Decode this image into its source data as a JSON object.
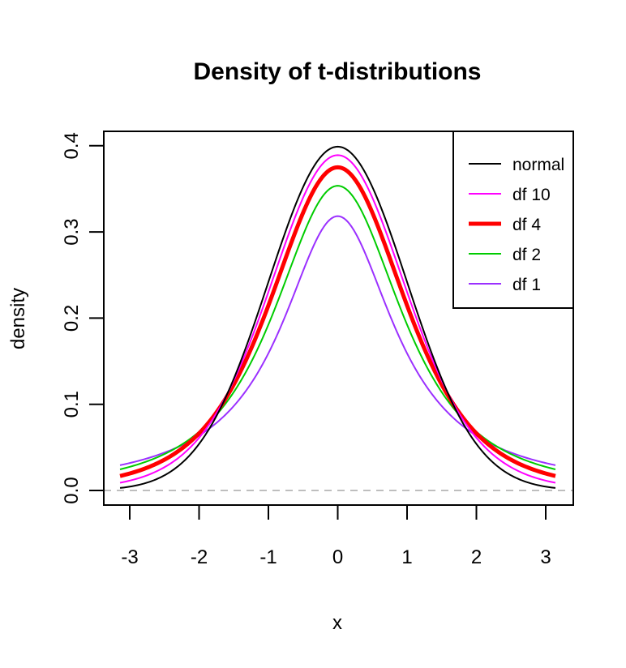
{
  "chart_data": {
    "type": "line",
    "title": "Density of t-distributions",
    "xlabel": "x",
    "ylabel": "density",
    "xlim": [
      -3.14,
      3.14
    ],
    "ylim": [
      0,
      0.4
    ],
    "xticks": [
      "-3",
      "-2",
      "-1",
      "0",
      "1",
      "2",
      "3"
    ],
    "yticks": [
      "0.0",
      "0.1",
      "0.2",
      "0.3",
      "0.4"
    ],
    "grid": false,
    "reference_line": {
      "y": 0,
      "color": "#bebebe",
      "style": "dashed"
    },
    "legend_position": "top-right",
    "series": [
      {
        "name": "normal",
        "color": "#000000",
        "width": 2,
        "x": [
          -3.14,
          -2.5,
          -2,
          -1.5,
          -1,
          -0.5,
          0,
          0.5,
          1,
          1.5,
          2,
          2.5,
          3.14
        ],
        "y": [
          0.003,
          0.018,
          0.054,
          0.13,
          0.242,
          0.352,
          0.399,
          0.352,
          0.242,
          0.13,
          0.054,
          0.018,
          0.003
        ]
      },
      {
        "name": "df 10",
        "color": "#ff00ff",
        "width": 2,
        "x": [
          -3.14,
          -2.5,
          -2,
          -1.5,
          -1,
          -0.5,
          0,
          0.5,
          1,
          1.5,
          2,
          2.5,
          3.14
        ],
        "y": [
          0.008,
          0.027,
          0.061,
          0.127,
          0.23,
          0.341,
          0.389,
          0.341,
          0.23,
          0.127,
          0.061,
          0.027,
          0.008
        ]
      },
      {
        "name": "df 4",
        "color": "#ff0000",
        "width": 5,
        "x": [
          -3.14,
          -2.5,
          -2,
          -1.5,
          -1,
          -0.5,
          0,
          0.5,
          1,
          1.5,
          2,
          2.5,
          3.14
        ],
        "y": [
          0.016,
          0.035,
          0.066,
          0.125,
          0.215,
          0.322,
          0.375,
          0.322,
          0.215,
          0.125,
          0.066,
          0.035,
          0.016
        ]
      },
      {
        "name": "df 2",
        "color": "#00cc00",
        "width": 2,
        "x": [
          -3.14,
          -2.5,
          -2,
          -1.5,
          -1,
          -0.5,
          0,
          0.5,
          1,
          1.5,
          2,
          2.5,
          3.14
        ],
        "y": [
          0.023,
          0.041,
          0.068,
          0.115,
          0.192,
          0.298,
          0.354,
          0.298,
          0.192,
          0.115,
          0.068,
          0.041,
          0.023
        ]
      },
      {
        "name": "df 1",
        "color": "#9b30ff",
        "width": 2,
        "x": [
          -3.14,
          -2.5,
          -2,
          -1.5,
          -1,
          -0.5,
          0,
          0.5,
          1,
          1.5,
          2,
          2.5,
          3.14
        ],
        "y": [
          0.029,
          0.044,
          0.064,
          0.098,
          0.159,
          0.255,
          0.318,
          0.255,
          0.159,
          0.098,
          0.064,
          0.044,
          0.029
        ]
      }
    ]
  }
}
